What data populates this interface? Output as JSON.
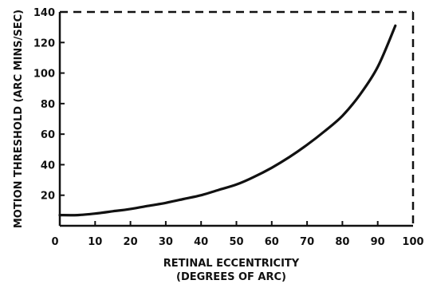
{
  "chart_data": {
    "type": "line",
    "title": "",
    "xlabel_line1": "RETINAL ECCENTRICITY",
    "xlabel_line2": "(DEGREES OF ARC)",
    "ylabel": "MOTION THRESHOLD (ARC MINS/SEC)",
    "xlim": [
      0,
      100
    ],
    "ylim": [
      0,
      140
    ],
    "xticks": [
      0,
      10,
      20,
      30,
      40,
      50,
      60,
      70,
      80,
      90,
      100
    ],
    "yticks": [
      20,
      40,
      60,
      80,
      100,
      120,
      140
    ],
    "grid": false,
    "frame_top_right": "dashed",
    "series": [
      {
        "x": [
          0,
          5,
          10,
          15,
          20,
          25,
          30,
          35,
          40,
          45,
          50,
          55,
          60,
          65,
          70,
          75,
          80,
          85,
          90,
          95
        ],
        "y": [
          7,
          7,
          8,
          9.5,
          11,
          13,
          15,
          17.5,
          20,
          23.5,
          27,
          32,
          38,
          45,
          53,
          62,
          72,
          86,
          104,
          131
        ]
      }
    ]
  }
}
